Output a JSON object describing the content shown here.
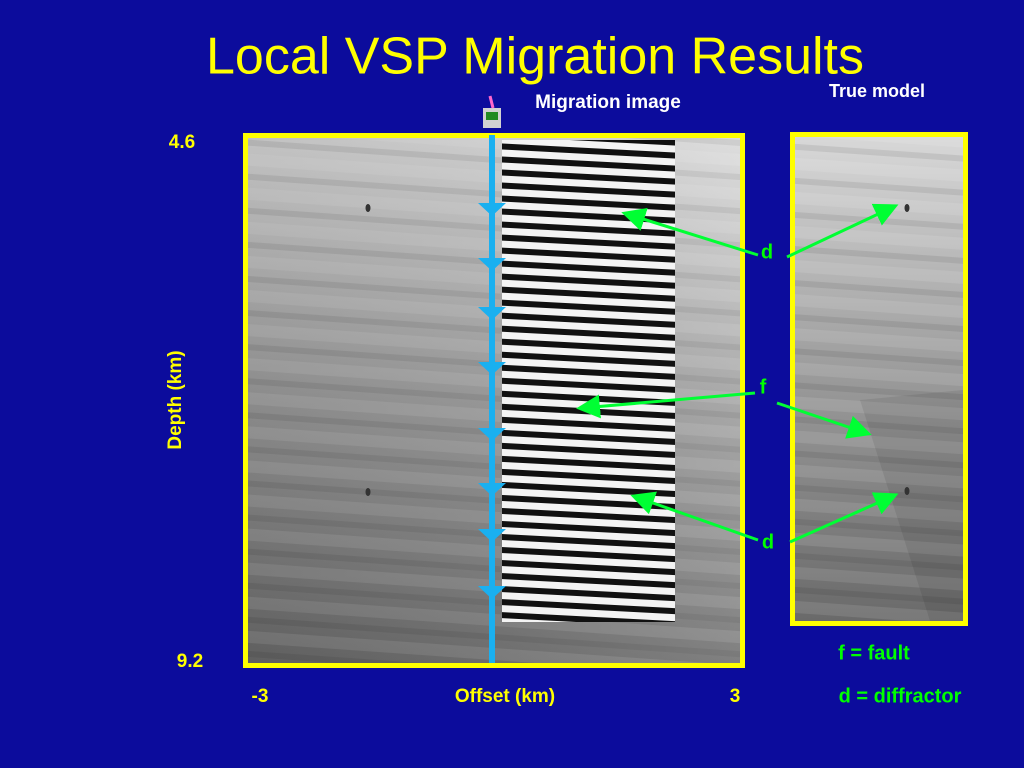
{
  "title": "Local VSP Migration Results",
  "panels": {
    "migration": "Migration image",
    "true_model": "True model"
  },
  "axes": {
    "depth_label": "Depth (km)",
    "depth_top": "4.6",
    "depth_bottom": "9.2",
    "offset_label": "Offset (km)",
    "offset_left": "-3",
    "offset_right": "3"
  },
  "annotations": {
    "d_top": "d",
    "f": "f",
    "d_bottom": "d"
  },
  "legend": {
    "fault": "f = fault",
    "diffractor": "d = diffractor"
  }
}
